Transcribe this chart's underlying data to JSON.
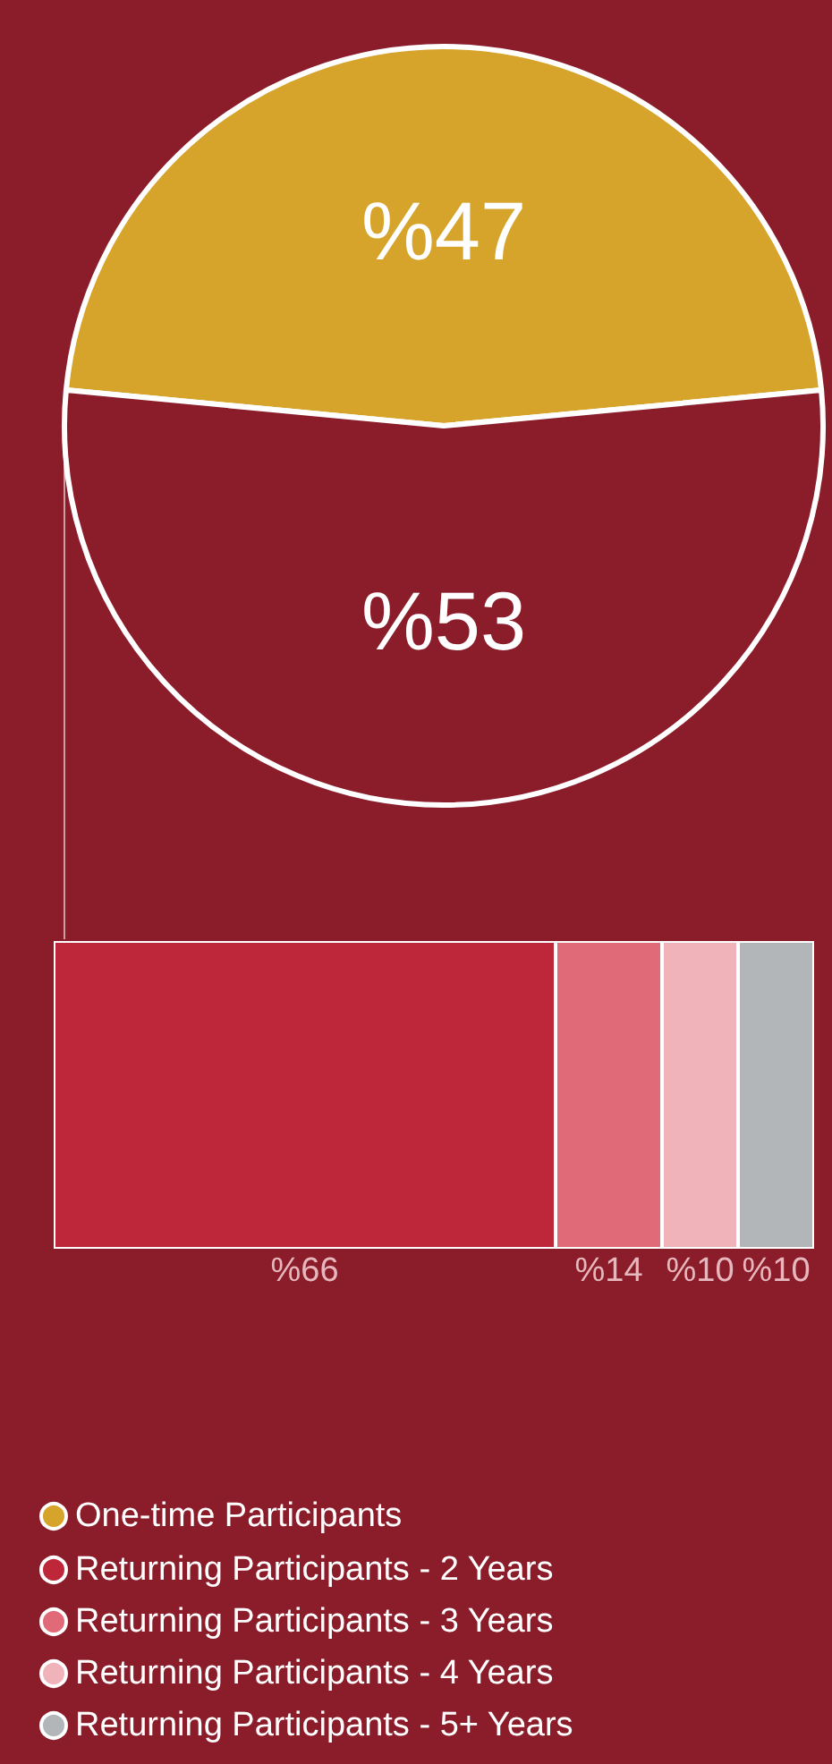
{
  "chart_data": [
    {
      "type": "pie",
      "categories": [
        "One-time Participants",
        null
      ],
      "values": [
        47,
        53
      ],
      "colors": [
        "#d6a32b",
        "#8b1c29"
      ],
      "value_labels": [
        "%47",
        "%53"
      ],
      "legend": "bottom left"
    },
    {
      "type": "bar",
      "orientation": "horizontal",
      "stacked": true,
      "categories": [
        null
      ],
      "legend": "bottom left",
      "series": [
        {
          "name": "Returning Participants - 2 Years",
          "color": "#be2639",
          "values": [
            66
          ],
          "value_labels": [
            "%66"
          ]
        },
        {
          "name": "Returning Participants - 3 Years",
          "color": "#e06a77",
          "values": [
            14
          ],
          "value_labels": [
            "%14"
          ]
        },
        {
          "name": "Returning Participants - 4 Years",
          "color": "#f0b3ba",
          "values": [
            10
          ],
          "value_labels": [
            "%10"
          ]
        },
        {
          "name": "Returning Participants - 5+ Years",
          "color": "#b3b6b9",
          "values": [
            10
          ],
          "value_labels": [
            "%10"
          ]
        }
      ]
    }
  ]
}
